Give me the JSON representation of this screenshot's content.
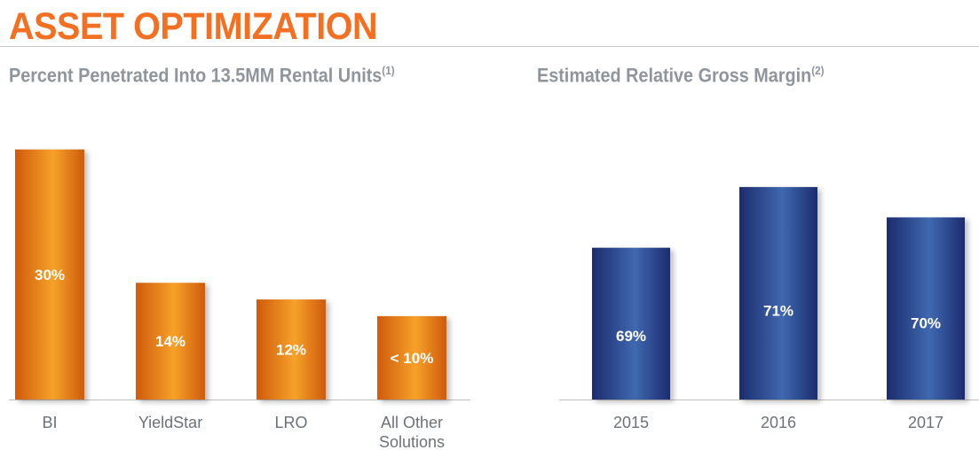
{
  "page": {
    "title": "ASSET OPTIMIZATION"
  },
  "chart_data": [
    {
      "type": "bar",
      "title": "Percent Penetrated Into 13.5MM Rental Units",
      "title_footnote": "(1)",
      "categories": [
        "BI",
        "YieldStar",
        "LRO",
        "All Other Solutions"
      ],
      "values": [
        30,
        14,
        12,
        10
      ],
      "data_labels": [
        "30%",
        "14%",
        "12%",
        "< 10%"
      ],
      "xlabel": "",
      "ylabel": "",
      "ylim": [
        0,
        30.5
      ],
      "grid": false,
      "colors": {
        "bar_dark": "#cf5a0c",
        "bar_light": "#f7a12a"
      }
    },
    {
      "type": "bar",
      "title": "Estimated Relative Gross Margin",
      "title_footnote": "(2)",
      "categories": [
        "2015",
        "2016",
        "2017"
      ],
      "values": [
        69,
        71,
        70
      ],
      "data_labels": [
        "69%",
        "71%",
        "70%"
      ],
      "xlabel": "",
      "ylabel": "",
      "ylim": [
        64,
        71.5
      ],
      "grid": false,
      "colors": {
        "bar_dark": "#1c2c6e",
        "bar_light": "#3f68b0"
      }
    }
  ]
}
